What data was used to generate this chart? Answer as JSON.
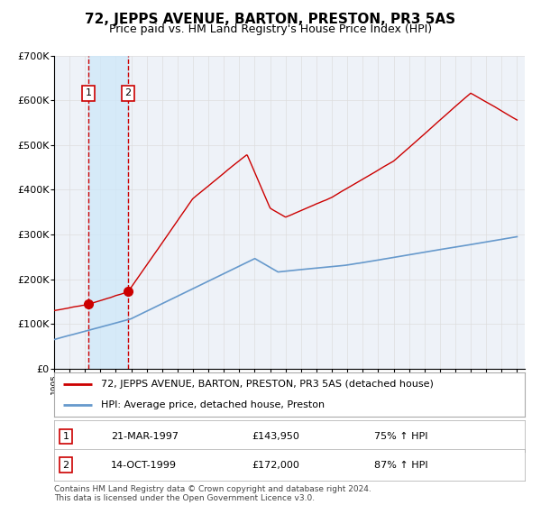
{
  "title": "72, JEPPS AVENUE, BARTON, PRESTON, PR3 5AS",
  "subtitle": "Price paid vs. HM Land Registry's House Price Index (HPI)",
  "ylim": [
    0,
    700000
  ],
  "yticks": [
    0,
    100000,
    200000,
    300000,
    400000,
    500000,
    600000,
    700000
  ],
  "ytick_labels": [
    "£0",
    "£100K",
    "£200K",
    "£300K",
    "£400K",
    "£500K",
    "£600K",
    "£700K"
  ],
  "xlim_start": 1995.0,
  "xlim_end": 2025.5,
  "sale1_year": 1997.22,
  "sale1_price": 143950,
  "sale1_label": "1",
  "sale1_date": "21-MAR-1997",
  "sale1_pct": "75% ↑ HPI",
  "sale2_year": 1999.79,
  "sale2_price": 172000,
  "sale2_label": "2",
  "sale2_date": "14-OCT-1999",
  "sale2_pct": "87% ↑ HPI",
  "hpi_line_color": "#6699cc",
  "price_line_color": "#cc0000",
  "marker_color": "#cc0000",
  "shade_color": "#d0e8f8",
  "vline_color": "#cc0000",
  "grid_color": "#dddddd",
  "background_color": "#eef2f8",
  "legend_address": "72, JEPPS AVENUE, BARTON, PRESTON, PR3 5AS (detached house)",
  "legend_hpi": "HPI: Average price, detached house, Preston",
  "footnote": "Contains HM Land Registry data © Crown copyright and database right 2024.\nThis data is licensed under the Open Government Licence v3.0.",
  "title_fontsize": 11,
  "subtitle_fontsize": 9,
  "tick_fontsize": 8,
  "legend_fontsize": 8,
  "table_fontsize": 8
}
